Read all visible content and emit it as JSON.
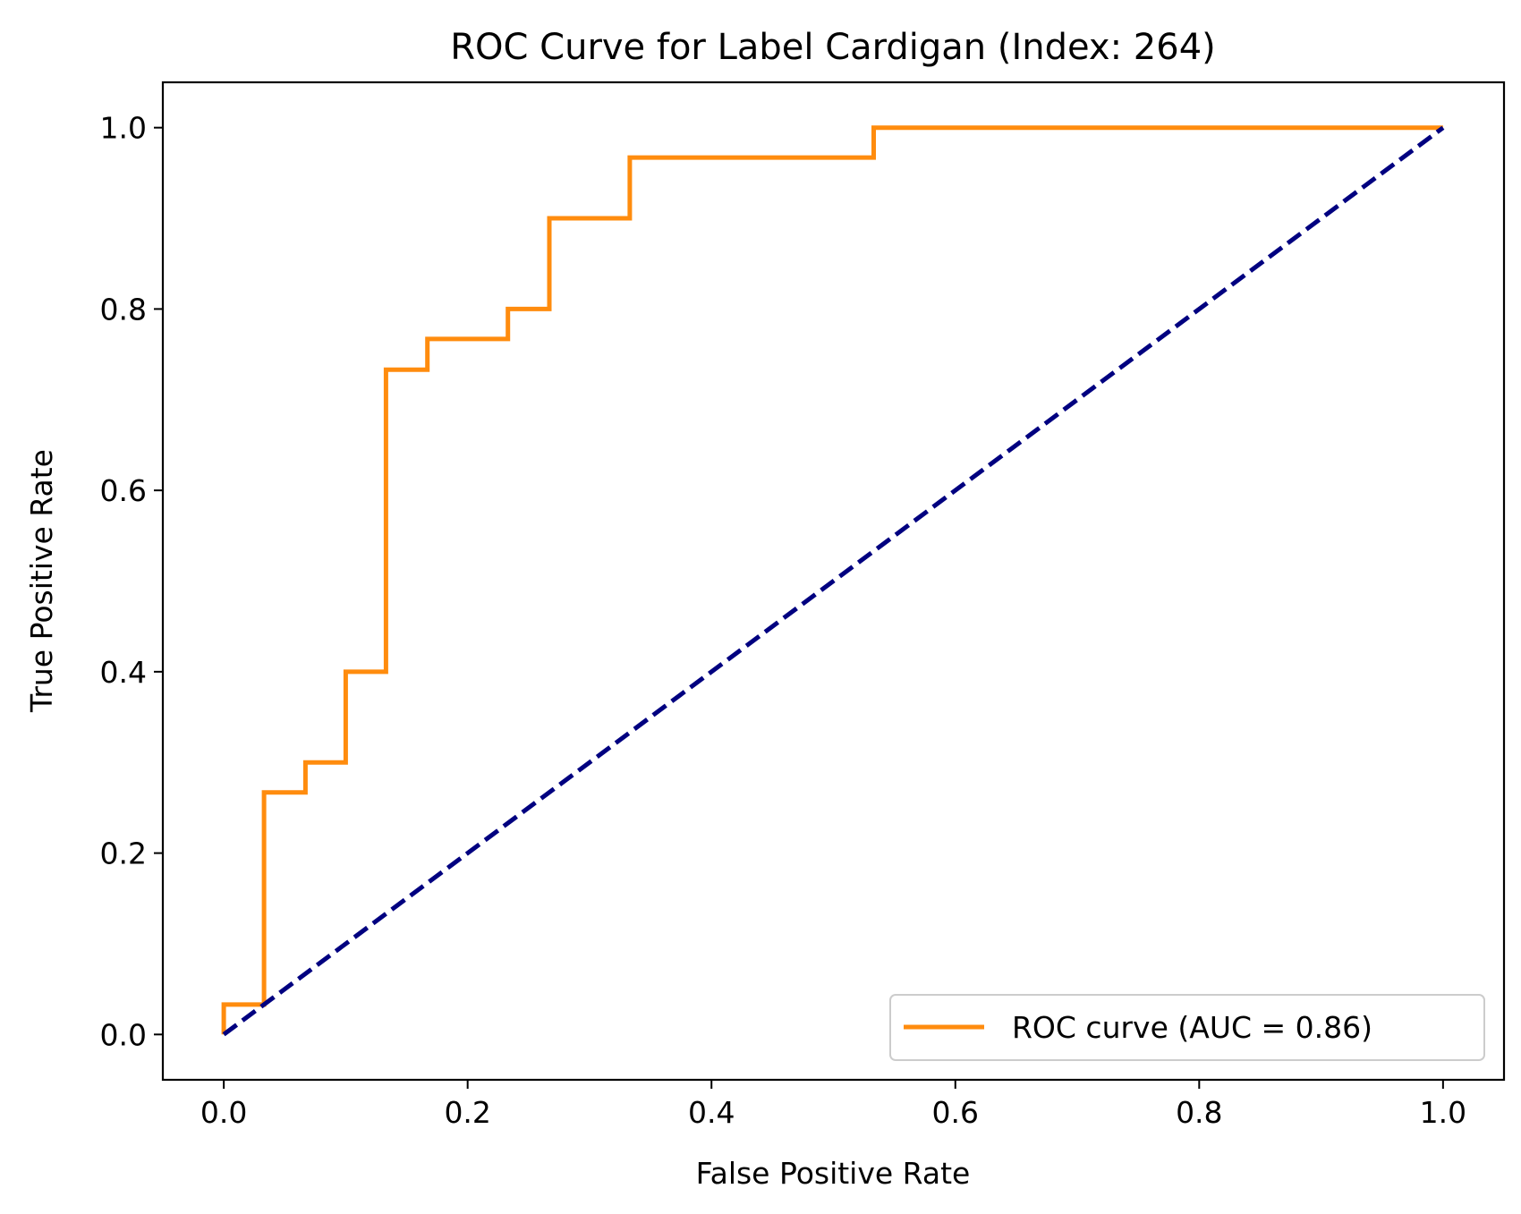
{
  "chart_data": {
    "type": "line",
    "title": "ROC Curve for Label Cardigan (Index: 264)",
    "xlabel": "False Positive Rate",
    "ylabel": "True Positive Rate",
    "xlim": [
      -0.05,
      1.05
    ],
    "ylim": [
      -0.05,
      1.05
    ],
    "xticks": [
      0.0,
      0.2,
      0.4,
      0.6,
      0.8,
      1.0
    ],
    "yticks": [
      0.0,
      0.2,
      0.4,
      0.6,
      0.8,
      1.0
    ],
    "xtick_labels": [
      "0.0",
      "0.2",
      "0.4",
      "0.6",
      "0.8",
      "1.0"
    ],
    "ytick_labels": [
      "0.0",
      "0.2",
      "0.4",
      "0.6",
      "0.8",
      "1.0"
    ],
    "grid": false,
    "legend_position": "lower-right",
    "series": [
      {
        "name": "ROC curve (AUC = 0.86)",
        "color": "#ff8c0e",
        "style": "solid",
        "x": [
          0.0,
          0.0,
          0.033,
          0.033,
          0.067,
          0.067,
          0.1,
          0.1,
          0.133,
          0.133,
          0.167,
          0.167,
          0.233,
          0.233,
          0.267,
          0.267,
          0.333,
          0.333,
          0.533,
          0.533,
          1.0
        ],
        "y": [
          0.0,
          0.033,
          0.033,
          0.267,
          0.267,
          0.3,
          0.3,
          0.4,
          0.4,
          0.733,
          0.733,
          0.767,
          0.767,
          0.8,
          0.8,
          0.9,
          0.9,
          0.967,
          0.967,
          1.0,
          1.0
        ]
      },
      {
        "name": "",
        "color": "#000080",
        "style": "dashed",
        "x": [
          0.0,
          1.0
        ],
        "y": [
          0.0,
          1.0
        ]
      }
    ]
  }
}
